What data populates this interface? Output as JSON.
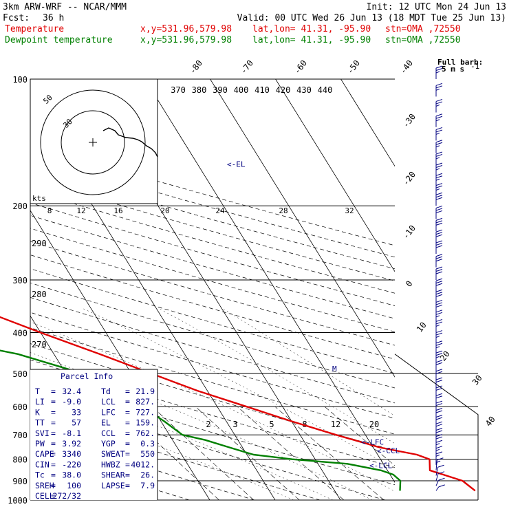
{
  "header": {
    "model": "3km ARW-WRF -- NCAR/MMM",
    "init": "Init: 12 UTC Mon 24 Jun 13",
    "fcst_label": "Fcst:",
    "fcst_value": "36 h",
    "valid": "Valid: 00 UTC Wed 26 Jun 13 (18 MDT Tue 25 Jun 13)",
    "temp_label": "Temperature",
    "dew_label": "Dewpoint temperature",
    "xy": "x,y=531.96,579.98",
    "latlon": "lat,lon= 41.31, -95.90",
    "stn": "stn=OMA ,72550"
  },
  "colors": {
    "temperature": "#e00000",
    "dewpoint": "#008000",
    "annotation": "#000080",
    "hodograph": "#000000"
  },
  "barb_legend": {
    "title": "Full barb:",
    "value": "5 m s",
    "exponent": "-1"
  },
  "chart_data": {
    "type": "line",
    "chart_kind": "skew-T log-P thermodynamic diagram",
    "y_axis": {
      "quantity": "pressure",
      "scale": "log",
      "ylim": [
        1000,
        100
      ],
      "ticks": [
        100,
        200,
        300,
        400,
        500,
        600,
        700,
        800,
        900,
        1000
      ]
    },
    "isotherm_labels": [
      "-80",
      "-70",
      "-60",
      "-50",
      "-40",
      "-30",
      "-20",
      "-10",
      "0",
      "10",
      "20",
      "30",
      "40"
    ],
    "theta_labels": [
      "370",
      "380",
      "390",
      "400",
      "410",
      "420",
      "430",
      "440"
    ],
    "dry_adiabat_labels": [
      "290",
      "280",
      "270"
    ],
    "mixing_ratio_labels": [
      "2",
      "3",
      "5",
      "8",
      "12",
      "20"
    ],
    "series": [
      {
        "name": "Temperature",
        "color": "#e00000",
        "pressure": [
          950,
          900,
          850,
          800,
          780,
          750,
          700,
          650,
          600,
          550,
          500,
          450,
          400,
          350,
          300,
          250,
          220,
          200,
          180,
          160,
          150,
          140,
          130,
          120,
          110,
          100
        ],
        "values": [
          31.5,
          30.5,
          26.5,
          27.5,
          26.0,
          21.0,
          15.5,
          10.0,
          4.5,
          -1.5,
          -7.0,
          -13.0,
          -20.0,
          -27.5,
          -37.0,
          -48.0,
          -54.0,
          -58.0,
          -62.0,
          -64.5,
          -63.0,
          -60.0,
          -56.5,
          -54.0,
          -52.5,
          -51.5
        ]
      },
      {
        "name": "Dewpoint temperature",
        "color": "#008000",
        "pressure": [
          950,
          900,
          870,
          850,
          820,
          800,
          780,
          750,
          720,
          700,
          650,
          600,
          550,
          500,
          450,
          400,
          370,
          350,
          320,
          300,
          250,
          200,
          150,
          120,
          110,
          100
        ],
        "values": [
          20.0,
          21.0,
          20.5,
          19.0,
          14.5,
          6.5,
          1.0,
          -2.0,
          -5.0,
          -8.0,
          -9.5,
          -11.5,
          -14.0,
          -17.5,
          -25.5,
          -40.0,
          -50.0,
          -53.0,
          -55.0,
          -56.5,
          -62.0,
          -68.0,
          -76.0,
          -82.0,
          -84.0,
          -86.0
        ]
      }
    ],
    "wind_barbs_ms": [
      {
        "p": 100,
        "speed": 12.5,
        "dir": 270
      },
      {
        "p": 110,
        "speed": 12.5,
        "dir": 270
      },
      {
        "p": 120,
        "speed": 12.5,
        "dir": 270
      },
      {
        "p": 130,
        "speed": 12.5,
        "dir": 270
      },
      {
        "p": 140,
        "speed": 12.5,
        "dir": 270
      },
      {
        "p": 150,
        "speed": 12.5,
        "dir": 270
      },
      {
        "p": 160,
        "speed": 12.5,
        "dir": 270
      },
      {
        "p": 170,
        "speed": 12.5,
        "dir": 270
      },
      {
        "p": 180,
        "speed": 12.5,
        "dir": 270
      },
      {
        "p": 190,
        "speed": 12.5,
        "dir": 270
      },
      {
        "p": 200,
        "speed": 15,
        "dir": 270
      },
      {
        "p": 215,
        "speed": 15,
        "dir": 270
      },
      {
        "p": 230,
        "speed": 15,
        "dir": 270
      },
      {
        "p": 245,
        "speed": 15,
        "dir": 270
      },
      {
        "p": 260,
        "speed": 15,
        "dir": 270
      },
      {
        "p": 280,
        "speed": 15,
        "dir": 270
      },
      {
        "p": 300,
        "speed": 15,
        "dir": 270
      },
      {
        "p": 320,
        "speed": 15,
        "dir": 270
      },
      {
        "p": 340,
        "speed": 15,
        "dir": 270
      },
      {
        "p": 360,
        "speed": 15,
        "dir": 270
      },
      {
        "p": 380,
        "speed": 12.5,
        "dir": 270
      },
      {
        "p": 400,
        "speed": 12.5,
        "dir": 270
      },
      {
        "p": 425,
        "speed": 12.5,
        "dir": 270
      },
      {
        "p": 450,
        "speed": 12.5,
        "dir": 270
      },
      {
        "p": 475,
        "speed": 12.5,
        "dir": 270
      },
      {
        "p": 500,
        "speed": 10,
        "dir": 270
      },
      {
        "p": 525,
        "speed": 10,
        "dir": 270
      },
      {
        "p": 550,
        "speed": 10,
        "dir": 270
      },
      {
        "p": 575,
        "speed": 10,
        "dir": 270
      },
      {
        "p": 600,
        "speed": 10,
        "dir": 270
      },
      {
        "p": 625,
        "speed": 10,
        "dir": 270
      },
      {
        "p": 650,
        "speed": 10,
        "dir": 270
      },
      {
        "p": 675,
        "speed": 10,
        "dir": 270
      },
      {
        "p": 700,
        "speed": 10,
        "dir": 270
      },
      {
        "p": 725,
        "speed": 10,
        "dir": 270
      },
      {
        "p": 750,
        "speed": 10,
        "dir": 270
      },
      {
        "p": 775,
        "speed": 7.5,
        "dir": 270
      },
      {
        "p": 800,
        "speed": 7.5,
        "dir": 270
      },
      {
        "p": 825,
        "speed": 7.5,
        "dir": 270
      },
      {
        "p": 850,
        "speed": 7.5,
        "dir": 250
      },
      {
        "p": 875,
        "speed": 5,
        "dir": 230
      },
      {
        "p": 900,
        "speed": 5,
        "dir": 220
      },
      {
        "p": 925,
        "speed": 5,
        "dir": 210
      },
      {
        "p": 950,
        "speed": 5,
        "dir": 200
      }
    ],
    "levels_marked": [
      {
        "label": "<-EL",
        "p": 159
      },
      {
        "label": "<-LFC",
        "p": 727
      },
      {
        "label": "<-CCL",
        "p": 762
      },
      {
        "label": "<-LCL",
        "p": 827
      }
    ],
    "hodograph": {
      "rings": [
        "30",
        "50"
      ],
      "speed_labels": [
        "8",
        "12",
        "16",
        "20",
        "24",
        "28",
        "32"
      ],
      "speed_unit": "kts"
    }
  },
  "parcel_info": {
    "title": "Parcel Info",
    "rows": [
      [
        "T",
        "=",
        "32.4",
        "Td",
        "=",
        "21.9"
      ],
      [
        "LI",
        "=",
        "-9.0",
        "LCL",
        "=",
        "827."
      ],
      [
        "K",
        "=",
        "33",
        "LFC",
        "=",
        "727."
      ],
      [
        "TT",
        "=",
        "57",
        "EL",
        "=",
        "159."
      ],
      [
        "SVI",
        "=",
        "-8.1",
        "CCL",
        "=",
        "762."
      ],
      [
        "PW",
        "=",
        "3.92",
        "YGP",
        "=",
        "0.3"
      ],
      [
        "CAPE",
        "=",
        "3340",
        "SWEAT",
        "=",
        "550"
      ],
      [
        "CIN",
        "=",
        "-220",
        "HWBZ",
        "=",
        "4012."
      ],
      [
        "Tc",
        "=",
        "38.0",
        "SHEAR",
        "=",
        "26."
      ],
      [
        "SREH",
        "=",
        "100",
        "LAPSE",
        "=",
        "7.9"
      ],
      [
        "CELL",
        "=",
        "272/32",
        "",
        "",
        ""
      ]
    ]
  }
}
